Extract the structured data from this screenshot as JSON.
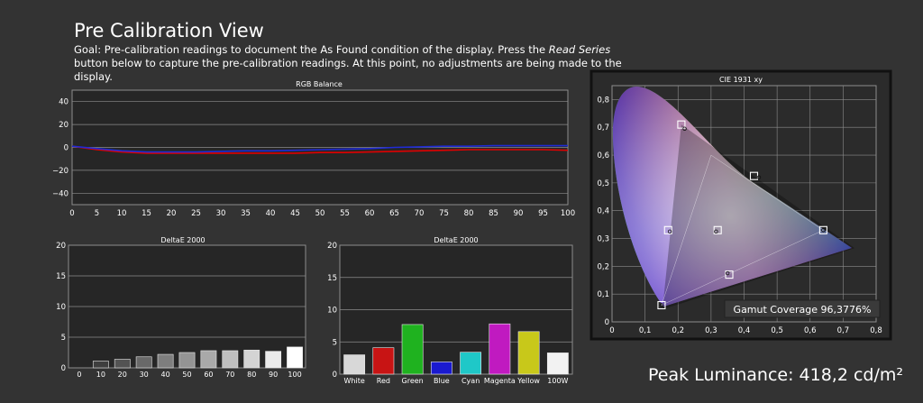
{
  "header": {
    "title": "Pre Calibration View",
    "goal_prefix": "Goal: Pre-calibration readings to document the As Found condition of the display. Press the ",
    "goal_button": "Read Series",
    "goal_suffix": " button below to capture the pre-calibration readings. At this point, no adjustments are being made to the display."
  },
  "footer": {
    "peak_luminance": "Peak Luminance: 418,2 cd/m²"
  },
  "colors": {
    "background": "#333333",
    "plot_background": "#262626",
    "grid": "#8c8c8c",
    "red_line": "#e00000",
    "blue_line": "#1f2bd6"
  },
  "chart_data": [
    {
      "type": "line",
      "title": "RGB Balance",
      "x": [
        0,
        5,
        10,
        15,
        20,
        25,
        30,
        35,
        40,
        45,
        50,
        55,
        60,
        65,
        70,
        75,
        80,
        85,
        90,
        95,
        100
      ],
      "xticks": [
        "0",
        "5",
        "10",
        "15",
        "20",
        "25",
        "30",
        "35",
        "40",
        "45",
        "50",
        "55",
        "60",
        "65",
        "70",
        "75",
        "80",
        "85",
        "90",
        "95",
        "100"
      ],
      "yticks": [
        "40",
        "20",
        "0",
        "−20",
        "−40"
      ],
      "ylim": [
        -50,
        50
      ],
      "xlim": [
        0,
        100
      ],
      "grid": true,
      "series": [
        {
          "color": "red",
          "values": [
            1,
            -2,
            -4,
            -5,
            -5,
            -5,
            -5,
            -5,
            -5,
            -5,
            -4.5,
            -4.5,
            -4,
            -3.5,
            -3,
            -2.5,
            -2,
            -2,
            -2,
            -2,
            -2.5
          ]
        },
        {
          "color": "blue",
          "values": [
            1,
            -1,
            -3,
            -4,
            -4,
            -4,
            -3.5,
            -3,
            -3,
            -2.5,
            -2,
            -1.5,
            -1,
            0,
            0.5,
            1,
            1,
            1.5,
            1.5,
            1.5,
            1.5
          ]
        }
      ]
    },
    {
      "type": "bar",
      "title": "DeltaE 2000",
      "categories": [
        "0",
        "10",
        "20",
        "30",
        "40",
        "50",
        "60",
        "70",
        "80",
        "90",
        "100"
      ],
      "values": [
        0,
        1.1,
        1.4,
        1.8,
        2.2,
        2.5,
        2.8,
        2.8,
        2.9,
        2.7,
        3.4
      ],
      "yticks": [
        "20",
        "15",
        "10",
        "5",
        "0"
      ],
      "ylim": [
        0,
        20
      ],
      "grid": true
    },
    {
      "type": "bar",
      "title": "DeltaE 2000",
      "categories": [
        "White",
        "Red",
        "Green",
        "Blue",
        "Cyan",
        "Magenta",
        "Yellow",
        "100W"
      ],
      "values": [
        3.0,
        4.1,
        7.7,
        1.9,
        3.4,
        7.8,
        6.6,
        3.3
      ],
      "bar_colors": [
        "#d8d8d8",
        "#c81414",
        "#1fb21f",
        "#1a1ad0",
        "#1fc8c8",
        "#c01ac0",
        "#c8c81a",
        "#f2f2f2"
      ],
      "yticks": [
        "20",
        "15",
        "10",
        "5",
        "0"
      ],
      "ylim": [
        0,
        20
      ],
      "grid": true
    },
    {
      "type": "scatter",
      "title": "CIE 1931 xy",
      "xticks": [
        "0",
        "0,1",
        "0,2",
        "0,3",
        "0,4",
        "0,5",
        "0,6",
        "0,7",
        "0,8"
      ],
      "yticks": [
        "0,8",
        "0,7",
        "0,6",
        "0,5",
        "0,4",
        "0,3",
        "0,2",
        "0,1",
        "0"
      ],
      "xlim": [
        0,
        0.8
      ],
      "ylim": [
        0,
        0.85
      ],
      "target_gamut": [
        [
          0.64,
          0.33
        ],
        [
          0.3,
          0.6
        ],
        [
          0.15,
          0.06
        ]
      ],
      "measured_gamut": [
        [
          0.735,
          0.265
        ],
        [
          0.21,
          0.71
        ],
        [
          0.153,
          0.045
        ]
      ],
      "targets": [
        {
          "x": 0.64,
          "y": 0.33
        },
        {
          "x": 0.21,
          "y": 0.71
        },
        {
          "x": 0.15,
          "y": 0.06
        },
        {
          "x": 0.17,
          "y": 0.33
        },
        {
          "x": 0.32,
          "y": 0.33
        },
        {
          "x": 0.43,
          "y": 0.525
        },
        {
          "x": 0.355,
          "y": 0.17
        }
      ],
      "measured": [
        {
          "x": 0.64,
          "y": 0.33
        },
        {
          "x": 0.22,
          "y": 0.695
        },
        {
          "x": 0.15,
          "y": 0.06
        },
        {
          "x": 0.175,
          "y": 0.325
        },
        {
          "x": 0.315,
          "y": 0.325
        },
        {
          "x": 0.445,
          "y": 0.52
        },
        {
          "x": 0.35,
          "y": 0.175
        }
      ],
      "gamut_coverage": "Gamut Coverage 96,3776%"
    }
  ]
}
